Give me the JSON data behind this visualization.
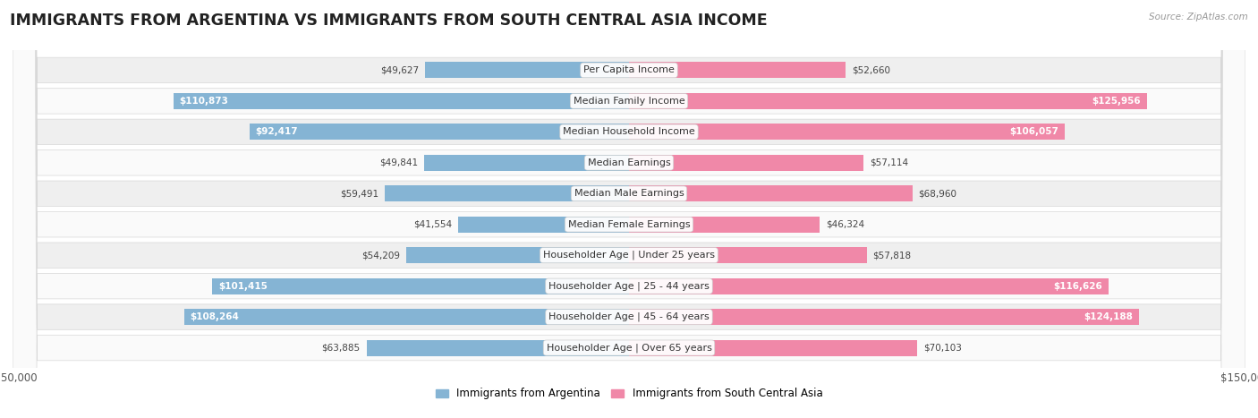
{
  "title": "IMMIGRANTS FROM ARGENTINA VS IMMIGRANTS FROM SOUTH CENTRAL ASIA INCOME",
  "source": "Source: ZipAtlas.com",
  "categories": [
    "Per Capita Income",
    "Median Family Income",
    "Median Household Income",
    "Median Earnings",
    "Median Male Earnings",
    "Median Female Earnings",
    "Householder Age | Under 25 years",
    "Householder Age | 25 - 44 years",
    "Householder Age | 45 - 64 years",
    "Householder Age | Over 65 years"
  ],
  "argentina_values": [
    49627,
    110873,
    92417,
    49841,
    59491,
    41554,
    54209,
    101415,
    108264,
    63885
  ],
  "south_central_asia_values": [
    52660,
    125956,
    106057,
    57114,
    68960,
    46324,
    57818,
    116626,
    124188,
    70103
  ],
  "argentina_color": "#85b4d4",
  "argentina_color_dark": "#5b90c0",
  "south_central_asia_color": "#f088a8",
  "south_central_asia_color_dark": "#e0607a",
  "argentina_label": "Immigrants from Argentina",
  "south_central_asia_label": "Immigrants from South Central Asia",
  "max_value": 150000,
  "bg_color": "#ffffff",
  "row_bg_even": "#efefef",
  "row_bg_odd": "#fafafa",
  "row_border": "#d8d8d8",
  "title_fontsize": 12.5,
  "cat_fontsize": 8.0,
  "value_fontsize": 7.5,
  "legend_fontsize": 8.5
}
